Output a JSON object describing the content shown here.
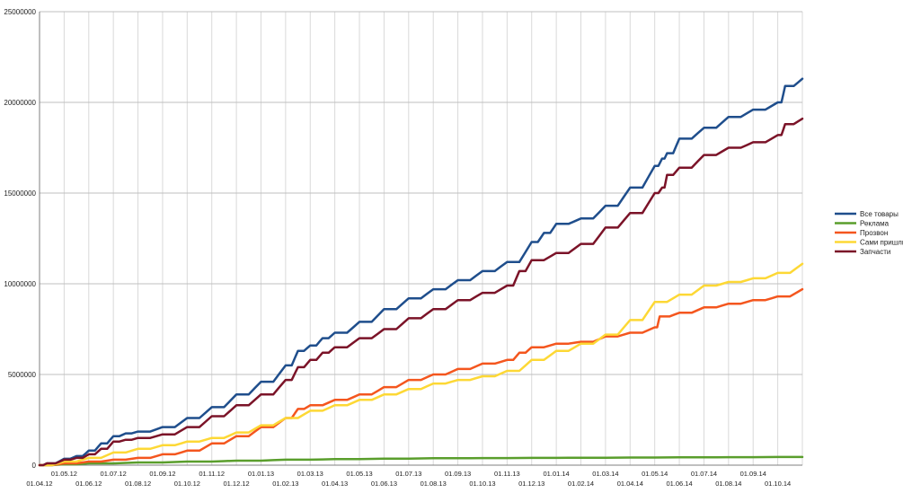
{
  "chart_data": {
    "type": "line",
    "title": "",
    "xlabel": "",
    "ylabel": "",
    "ylim": [
      0,
      25000000
    ],
    "yticks": [
      "0",
      "5000000",
      "10000000",
      "15000000",
      "20000000",
      "25000000"
    ],
    "ytick_values": [
      0,
      5000000,
      10000000,
      15000000,
      20000000,
      25000000
    ],
    "xticks_row1": [
      "01.04.12",
      "01.06.12",
      "01.08.12",
      "01.10.12",
      "01.12.12",
      "01.02.13",
      "01.04.13",
      "01.06.13",
      "01.08.13",
      "01.10.13",
      "01.12.13",
      "01.02.14",
      "01.04.14",
      "01.06.14",
      "01.08.14",
      "01.10.14"
    ],
    "xticks_row2": [
      "01.05.12",
      "01.07.12",
      "01.09.12",
      "01.11.12",
      "01.01.13",
      "01.03.13",
      "01.05.13",
      "01.07.13",
      "01.09.13",
      "01.11.13",
      "01.01.14",
      "01.03.14",
      "01.05.14",
      "01.07.14",
      "01.09.14"
    ],
    "x_months": 31,
    "grid": true,
    "legend_position": "right",
    "series": [
      {
        "name": "Все товары",
        "color": "#1f4e8c",
        "x": [
          0,
          0.3,
          1,
          1.5,
          2,
          2.5,
          3,
          3.5,
          4,
          5,
          6,
          7,
          8,
          9,
          10,
          10.5,
          11,
          11.5,
          12,
          13,
          14,
          15,
          16,
          17,
          18,
          19,
          20,
          20.5,
          21,
          22,
          23,
          24,
          25,
          25.3,
          25.5,
          26,
          27,
          28,
          29,
          30,
          30.3,
          31
        ],
        "y": [
          0,
          100000,
          350000,
          500000,
          800000,
          1200000,
          1600000,
          1750000,
          1850000,
          2100000,
          2600000,
          3200000,
          3900000,
          4600000,
          5500000,
          6300000,
          6600000,
          7000000,
          7300000,
          7900000,
          8600000,
          9200000,
          9700000,
          10200000,
          10700000,
          11200000,
          12300000,
          12800000,
          13300000,
          13600000,
          14300000,
          15300000,
          16500000,
          16900000,
          17200000,
          18000000,
          18600000,
          19200000,
          19600000,
          20000000,
          20900000,
          21300000
        ]
      },
      {
        "name": "Реклама",
        "color": "#5a9e2c",
        "x": [
          0,
          1,
          2,
          4,
          6,
          8,
          10,
          12,
          14,
          16,
          18,
          20,
          22,
          24,
          26,
          28,
          30,
          31
        ],
        "y": [
          0,
          50000,
          100000,
          150000,
          200000,
          250000,
          300000,
          330000,
          360000,
          380000,
          390000,
          400000,
          410000,
          420000,
          430000,
          440000,
          450000,
          450000
        ]
      },
      {
        "name": "Прозвон",
        "color": "#f4561e",
        "x": [
          0,
          1,
          2,
          3,
          4,
          5,
          6,
          7,
          8,
          9,
          10,
          10.5,
          11,
          12,
          13,
          14,
          15,
          16,
          17,
          18,
          19,
          19.5,
          20,
          21,
          22,
          23,
          24,
          25,
          25.2,
          26,
          27,
          28,
          29,
          30,
          31
        ],
        "y": [
          0,
          100000,
          200000,
          300000,
          400000,
          600000,
          800000,
          1200000,
          1600000,
          2100000,
          2600000,
          3100000,
          3300000,
          3600000,
          3900000,
          4300000,
          4700000,
          5000000,
          5300000,
          5600000,
          5800000,
          6200000,
          6500000,
          6700000,
          6800000,
          7100000,
          7300000,
          7600000,
          8200000,
          8400000,
          8700000,
          8900000,
          9100000,
          9300000,
          9700000
        ]
      },
      {
        "name": "Сами пришли",
        "color": "#fdd835",
        "x": [
          0,
          1,
          2,
          3,
          4,
          5,
          6,
          7,
          8,
          9,
          10,
          11,
          12,
          13,
          14,
          15,
          16,
          17,
          18,
          19,
          20,
          21,
          22,
          23,
          24,
          25,
          26,
          27,
          28,
          29,
          30,
          31
        ],
        "y": [
          0,
          200000,
          400000,
          700000,
          900000,
          1100000,
          1300000,
          1500000,
          1800000,
          2200000,
          2600000,
          3000000,
          3300000,
          3600000,
          3900000,
          4200000,
          4500000,
          4700000,
          4900000,
          5200000,
          5800000,
          6300000,
          6700000,
          7200000,
          8000000,
          9000000,
          9400000,
          9900000,
          10100000,
          10300000,
          10600000,
          11100000
        ]
      },
      {
        "name": "Запчасти",
        "color": "#7b1328",
        "x": [
          0,
          0.3,
          1,
          1.5,
          2,
          2.5,
          3,
          3.5,
          4,
          5,
          6,
          7,
          8,
          9,
          10,
          10.5,
          11,
          11.5,
          12,
          13,
          14,
          15,
          16,
          17,
          18,
          19,
          19.5,
          20,
          21,
          22,
          23,
          24,
          25,
          25.3,
          25.5,
          26,
          27,
          28,
          29,
          30,
          30.3,
          31
        ],
        "y": [
          0,
          100000,
          300000,
          400000,
          600000,
          900000,
          1300000,
          1400000,
          1500000,
          1700000,
          2100000,
          2700000,
          3300000,
          3900000,
          4700000,
          5400000,
          5800000,
          6200000,
          6500000,
          7000000,
          7500000,
          8100000,
          8600000,
          9100000,
          9500000,
          9900000,
          10700000,
          11300000,
          11700000,
          12200000,
          13100000,
          13900000,
          15000000,
          15300000,
          16000000,
          16400000,
          17100000,
          17500000,
          17800000,
          18200000,
          18800000,
          19100000
        ]
      }
    ]
  }
}
